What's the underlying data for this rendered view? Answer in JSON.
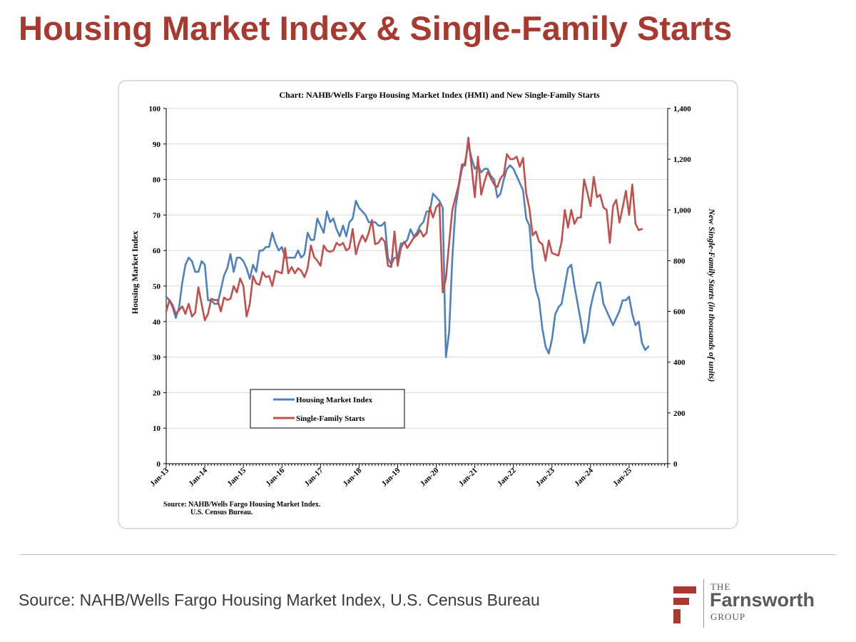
{
  "slide": {
    "title": "Housing Market Index & Single-Family Starts",
    "source": "Source: NAHB/Wells Fargo Housing Market Index, U.S. Census Bureau"
  },
  "logo": {
    "the": "THE",
    "name": "Farnsworth",
    "group": "GROUP",
    "accent_color": "#A8392E"
  },
  "chart_data": {
    "type": "line",
    "title": "Chart:  NAHB/Wells Fargo Housing Market Index (HMI) and New Single-Family Starts",
    "ylabel": "Housing Market Index",
    "y2label": "New Single-Family Starts (in thousands of units)",
    "ylim": [
      0,
      100
    ],
    "y2lim": [
      0,
      1400
    ],
    "yticks": [
      "0",
      "10",
      "20",
      "30",
      "40",
      "50",
      "60",
      "70",
      "80",
      "90",
      "100"
    ],
    "y2ticks": [
      "0",
      "200",
      "400",
      "600",
      "800",
      "1,000",
      "1,200",
      "1,400"
    ],
    "xticks": [
      "Jan-13",
      "Jan-14",
      "Jan-15",
      "Jan-16",
      "Jan-17",
      "Jan-18",
      "Jan-19",
      "Jan-20",
      "Jan-21",
      "Jan-22",
      "Jan-23",
      "Jan-24",
      "Jan-25"
    ],
    "x_start": "Jan-13",
    "x_end": "Dec-25",
    "legend_position": "lower-left",
    "source_note": [
      "Source: NAHB/Wells Fargo Housing Market Index.",
      "U.S. Census Bureau."
    ],
    "series": [
      {
        "name": "Housing Market Index",
        "axis": "left",
        "color": "#4F81BD",
        "start": "Jan-13",
        "values": [
          47,
          46,
          44,
          41,
          44,
          51,
          56,
          58,
          57,
          54,
          54,
          57,
          56,
          46,
          46,
          45,
          45,
          49,
          53,
          55,
          59,
          54,
          58,
          58,
          57,
          55,
          52,
          56,
          54,
          60,
          60,
          61,
          61,
          65,
          62,
          60,
          61,
          58,
          58,
          58,
          58,
          60,
          58,
          59,
          65,
          63,
          63,
          69,
          67,
          65,
          71,
          68,
          69,
          66,
          64,
          67,
          64,
          68,
          69,
          74,
          72,
          71,
          70,
          68,
          68,
          68,
          67,
          67,
          68,
          58,
          56,
          58,
          58,
          62,
          62,
          63,
          66,
          64,
          65,
          67,
          68,
          71,
          71,
          76,
          75,
          74,
          72,
          30,
          37,
          58,
          72,
          78,
          83,
          85,
          90,
          86,
          83,
          84,
          82,
          83,
          83,
          81,
          80,
          75,
          76,
          80,
          83,
          84,
          83,
          81,
          79,
          77,
          69,
          67,
          55,
          49,
          46,
          38,
          33,
          31,
          35,
          42,
          44,
          45,
          50,
          55,
          56,
          50,
          45,
          40,
          34,
          37,
          44,
          48,
          51,
          51,
          45,
          43,
          41,
          39,
          41,
          43,
          46,
          46,
          47,
          42,
          39,
          40,
          34,
          32,
          33
        ]
      },
      {
        "name": "Single-Family Starts",
        "axis": "right",
        "color": "#C0504D",
        "start": "Jan-13",
        "values": [
          600,
          645,
          625,
          590,
          605,
          620,
          590,
          630,
          580,
          595,
          695,
          630,
          565,
          590,
          650,
          645,
          645,
          600,
          655,
          645,
          650,
          700,
          675,
          730,
          700,
          580,
          630,
          740,
          710,
          705,
          755,
          735,
          740,
          700,
          760,
          755,
          750,
          850,
          750,
          775,
          750,
          770,
          760,
          735,
          770,
          860,
          815,
          800,
          780,
          860,
          840,
          835,
          840,
          870,
          860,
          870,
          840,
          850,
          925,
          825,
          870,
          900,
          875,
          910,
          960,
          865,
          870,
          890,
          875,
          780,
          775,
          915,
          780,
          850,
          875,
          850,
          870,
          890,
          900,
          920,
          895,
          910,
          1010,
          970,
          1010,
          1025,
          675,
          730,
          870,
          1000,
          1050,
          1100,
          1180,
          1175,
          1285,
          1170,
          1050,
          1210,
          1060,
          1110,
          1150,
          1125,
          1100,
          1090,
          1125,
          1140,
          1220,
          1200,
          1200,
          1210,
          1170,
          1205,
          1065,
          1005,
          900,
          915,
          875,
          865,
          800,
          880,
          830,
          825,
          820,
          875,
          1000,
          930,
          1000,
          945,
          970,
          970,
          1120,
          1070,
          1015,
          1130,
          1050,
          1060,
          1010,
          1000,
          870,
          1015,
          1040,
          950,
          1010,
          1075,
          980,
          1100,
          945,
          920,
          925
        ]
      }
    ]
  }
}
